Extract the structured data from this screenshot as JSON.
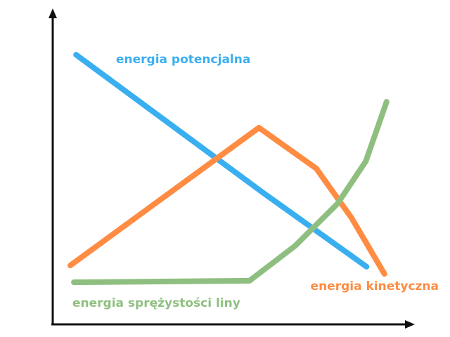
{
  "chart_data": {
    "type": "line",
    "xlim": [
      0,
      100
    ],
    "ylim": [
      0,
      100
    ],
    "series": [
      {
        "name": "energia potencjalna",
        "color": "#3aaff0",
        "x": [
          6.5,
          58.8,
          87.5
        ],
        "values": [
          86.5,
          42.1,
          18.5
        ]
      },
      {
        "name": "energia kinetyczna",
        "color": "#ff8c42",
        "x": [
          4.9,
          57.5,
          73.5,
          83.3,
          92.5
        ],
        "values": [
          18.9,
          63.1,
          50,
          34.2,
          16.2
        ]
      },
      {
        "name": "energia sprężystości liny",
        "color": "#8fbf80",
        "x": [
          5.9,
          54.9,
          67.6,
          79.4,
          87.3,
          93.1
        ],
        "values": [
          13.5,
          14,
          25.2,
          38.7,
          52.3,
          71.4
        ]
      }
    ]
  }
}
